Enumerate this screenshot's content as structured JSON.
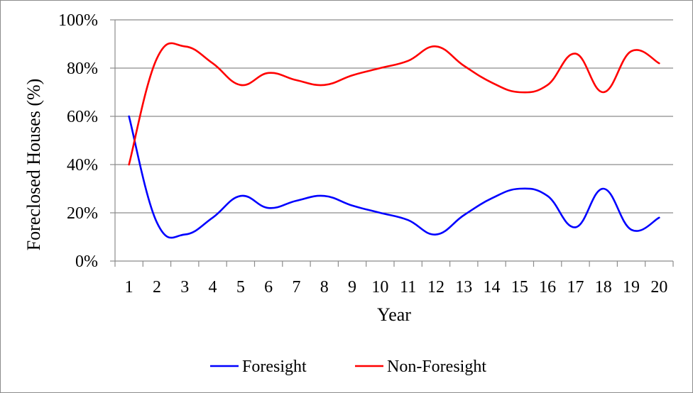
{
  "chart_data": {
    "type": "line",
    "title": "",
    "xlabel": "Year",
    "ylabel": "Foreclosed Houses (%)",
    "x": [
      1,
      2,
      3,
      4,
      5,
      6,
      7,
      8,
      9,
      10,
      11,
      12,
      13,
      14,
      15,
      16,
      17,
      18,
      19,
      20
    ],
    "x_tick_labels": [
      "1",
      "2",
      "3",
      "4",
      "5",
      "6",
      "7",
      "8",
      "9",
      "10",
      "11",
      "12",
      "13",
      "14",
      "15",
      "16",
      "17",
      "18",
      "19",
      "20"
    ],
    "ylim": [
      0,
      100
    ],
    "y_ticks": [
      0,
      20,
      40,
      60,
      80,
      100
    ],
    "y_tick_labels": [
      "0%",
      "20%",
      "40%",
      "60%",
      "80%",
      "100%"
    ],
    "grid": true,
    "legend_position": "bottom",
    "series": [
      {
        "name": "Foresight",
        "color": "#0000ff",
        "values": [
          60,
          16,
          11,
          18,
          27,
          22,
          25,
          27,
          23,
          20,
          17,
          11,
          19,
          26,
          30,
          27,
          14,
          30,
          13,
          18
        ]
      },
      {
        "name": "Non-Foresight",
        "color": "#ff0000",
        "values": [
          40,
          84,
          89,
          82,
          73,
          78,
          75,
          73,
          77,
          80,
          83,
          89,
          81,
          74,
          70,
          73,
          86,
          70,
          87,
          82
        ]
      }
    ]
  }
}
